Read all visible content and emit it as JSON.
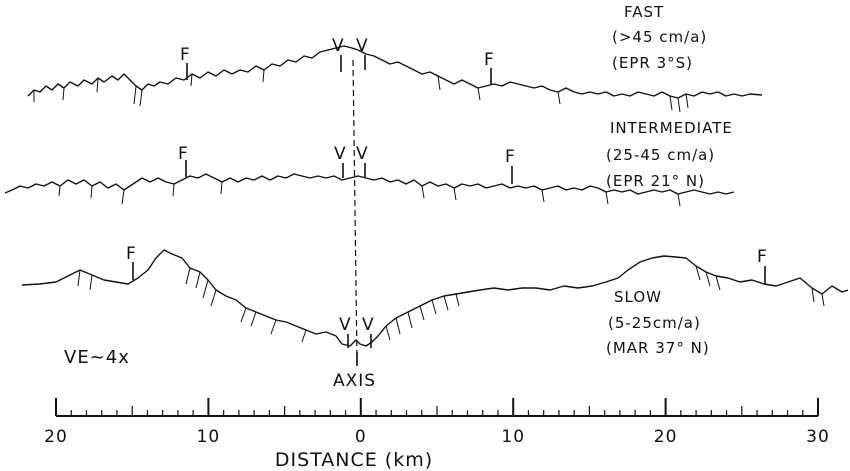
{
  "profiles": [
    {
      "id": "fast",
      "label": "FAST",
      "rate": "(>45 cm/a)",
      "location": "(EPR 3°S)",
      "marker_f": "F",
      "marker_v": "V"
    },
    {
      "id": "intermediate",
      "label": "INTERMEDIATE",
      "rate": "(25-45 cm/a)",
      "location": "(EPR 21° N)",
      "marker_f": "F",
      "marker_v": "V"
    },
    {
      "id": "slow",
      "label": "SLOW",
      "rate": "(5-25cm/a)",
      "location": "(MAR 37° N)",
      "marker_f": "F",
      "marker_v": "V"
    }
  ],
  "vertical_exaggeration": "VE~4x",
  "axis_label": "AXIS",
  "scale": {
    "title": "DISTANCE (km)",
    "tick_labels": [
      "20",
      "10",
      "0",
      "10",
      "20",
      "30"
    ],
    "range_km": [
      -20,
      30
    ]
  }
}
